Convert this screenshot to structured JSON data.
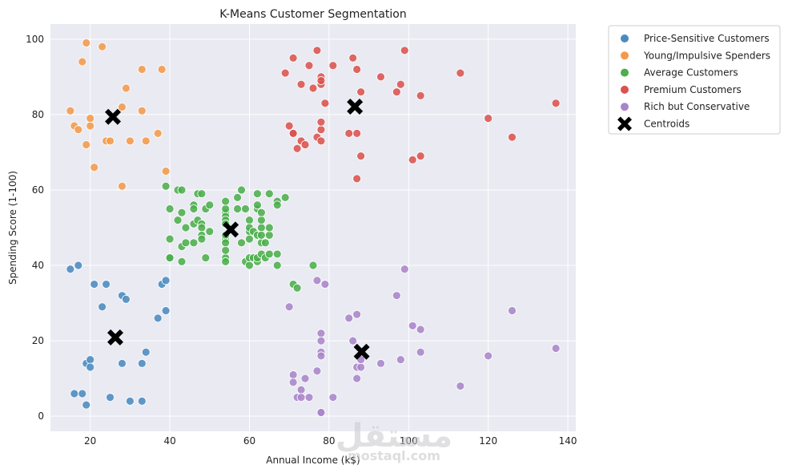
{
  "chart_data": {
    "type": "scatter",
    "title": "K-Means Customer Segmentation",
    "xlabel": "Annual Income (k$)",
    "ylabel": "Spending Score (1-100)",
    "xlim": [
      10,
      142
    ],
    "ylim": [
      -4,
      104
    ],
    "xticks": [
      20,
      40,
      60,
      80,
      100,
      120,
      140
    ],
    "yticks": [
      0,
      20,
      40,
      60,
      80,
      100
    ],
    "grid": true,
    "legend_position": "outside-right",
    "series": [
      {
        "name": "Price-Sensitive Customers",
        "color": "#4a8bbf",
        "points": [
          [
            15,
            39
          ],
          [
            16,
            6
          ],
          [
            17,
            40
          ],
          [
            18,
            6
          ],
          [
            19,
            3
          ],
          [
            19,
            14
          ],
          [
            20,
            15
          ],
          [
            20,
            13
          ],
          [
            21,
            35
          ],
          [
            23,
            29
          ],
          [
            24,
            35
          ],
          [
            25,
            5
          ],
          [
            28,
            14
          ],
          [
            28,
            32
          ],
          [
            29,
            31
          ],
          [
            30,
            4
          ],
          [
            33,
            4
          ],
          [
            33,
            14
          ],
          [
            34,
            17
          ],
          [
            37,
            26
          ],
          [
            38,
            35
          ],
          [
            39,
            36
          ],
          [
            39,
            28
          ]
        ]
      },
      {
        "name": "Young/Impulsive Spenders",
        "color": "#f39a4a",
        "points": [
          [
            15,
            81
          ],
          [
            16,
            77
          ],
          [
            17,
            76
          ],
          [
            18,
            94
          ],
          [
            19,
            72
          ],
          [
            19,
            99
          ],
          [
            20,
            77
          ],
          [
            20,
            79
          ],
          [
            21,
            66
          ],
          [
            23,
            98
          ],
          [
            24,
            73
          ],
          [
            25,
            73
          ],
          [
            28,
            82
          ],
          [
            28,
            61
          ],
          [
            29,
            87
          ],
          [
            30,
            73
          ],
          [
            33,
            92
          ],
          [
            33,
            81
          ],
          [
            34,
            73
          ],
          [
            37,
            75
          ],
          [
            38,
            92
          ],
          [
            39,
            65
          ]
        ]
      },
      {
        "name": "Average Customers",
        "color": "#4cae4c",
        "points": [
          [
            39,
            61
          ],
          [
            40,
            55
          ],
          [
            40,
            47
          ],
          [
            40,
            42
          ],
          [
            40,
            42
          ],
          [
            42,
            52
          ],
          [
            42,
            60
          ],
          [
            43,
            54
          ],
          [
            43,
            60
          ],
          [
            43,
            45
          ],
          [
            43,
            41
          ],
          [
            44,
            50
          ],
          [
            44,
            46
          ],
          [
            46,
            51
          ],
          [
            46,
            46
          ],
          [
            46,
            56
          ],
          [
            46,
            55
          ],
          [
            47,
            52
          ],
          [
            47,
            59
          ],
          [
            48,
            51
          ],
          [
            48,
            59
          ],
          [
            48,
            50
          ],
          [
            48,
            48
          ],
          [
            48,
            47
          ],
          [
            49,
            55
          ],
          [
            49,
            42
          ],
          [
            50,
            49
          ],
          [
            50,
            56
          ],
          [
            54,
            47
          ],
          [
            54,
            54
          ],
          [
            54,
            53
          ],
          [
            54,
            48
          ],
          [
            54,
            52
          ],
          [
            54,
            42
          ],
          [
            54,
            51
          ],
          [
            54,
            55
          ],
          [
            54,
            41
          ],
          [
            54,
            44
          ],
          [
            54,
            57
          ],
          [
            54,
            46
          ],
          [
            57,
            58
          ],
          [
            57,
            55
          ],
          [
            58,
            60
          ],
          [
            58,
            46
          ],
          [
            59,
            55
          ],
          [
            59,
            41
          ],
          [
            60,
            49
          ],
          [
            60,
            40
          ],
          [
            60,
            42
          ],
          [
            60,
            52
          ],
          [
            60,
            47
          ],
          [
            60,
            50
          ],
          [
            61,
            42
          ],
          [
            61,
            49
          ],
          [
            62,
            41
          ],
          [
            62,
            48
          ],
          [
            62,
            59
          ],
          [
            62,
            55
          ],
          [
            62,
            56
          ],
          [
            62,
            42
          ],
          [
            63,
            50
          ],
          [
            63,
            46
          ],
          [
            63,
            43
          ],
          [
            63,
            48
          ],
          [
            63,
            52
          ],
          [
            63,
            54
          ],
          [
            64,
            42
          ],
          [
            64,
            46
          ],
          [
            65,
            48
          ],
          [
            65,
            50
          ],
          [
            65,
            43
          ],
          [
            65,
            59
          ],
          [
            67,
            43
          ],
          [
            67,
            57
          ],
          [
            67,
            56
          ],
          [
            67,
            40
          ],
          [
            69,
            58
          ],
          [
            71,
            35
          ],
          [
            72,
            34
          ],
          [
            76,
            40
          ]
        ]
      },
      {
        "name": "Premium Customers",
        "color": "#d9534f",
        "points": [
          [
            69,
            91
          ],
          [
            70,
            77
          ],
          [
            71,
            95
          ],
          [
            71,
            75
          ],
          [
            71,
            75
          ],
          [
            72,
            71
          ],
          [
            73,
            88
          ],
          [
            73,
            73
          ],
          [
            74,
            72
          ],
          [
            75,
            93
          ],
          [
            76,
            87
          ],
          [
            77,
            97
          ],
          [
            77,
            74
          ],
          [
            78,
            90
          ],
          [
            78,
            88
          ],
          [
            78,
            76
          ],
          [
            78,
            89
          ],
          [
            78,
            78
          ],
          [
            78,
            73
          ],
          [
            79,
            83
          ],
          [
            81,
            93
          ],
          [
            85,
            75
          ],
          [
            86,
            95
          ],
          [
            87,
            63
          ],
          [
            87,
            75
          ],
          [
            87,
            92
          ],
          [
            88,
            86
          ],
          [
            88,
            69
          ],
          [
            93,
            90
          ],
          [
            97,
            86
          ],
          [
            98,
            88
          ],
          [
            99,
            97
          ],
          [
            101,
            68
          ],
          [
            103,
            85
          ],
          [
            103,
            69
          ],
          [
            113,
            91
          ],
          [
            120,
            79
          ],
          [
            126,
            74
          ],
          [
            137,
            83
          ]
        ]
      },
      {
        "name": "Rich but Conservative",
        "color": "#a885c9",
        "points": [
          [
            70,
            29
          ],
          [
            71,
            11
          ],
          [
            71,
            9
          ],
          [
            72,
            5
          ],
          [
            73,
            7
          ],
          [
            73,
            5
          ],
          [
            74,
            10
          ],
          [
            75,
            5
          ],
          [
            77,
            12
          ],
          [
            77,
            36
          ],
          [
            78,
            22
          ],
          [
            78,
            17
          ],
          [
            78,
            20
          ],
          [
            78,
            16
          ],
          [
            78,
            1
          ],
          [
            78,
            1
          ],
          [
            79,
            35
          ],
          [
            81,
            5
          ],
          [
            85,
            26
          ],
          [
            86,
            20
          ],
          [
            87,
            27
          ],
          [
            87,
            13
          ],
          [
            87,
            10
          ],
          [
            88,
            13
          ],
          [
            88,
            15
          ],
          [
            93,
            14
          ],
          [
            97,
            32
          ],
          [
            98,
            15
          ],
          [
            99,
            39
          ],
          [
            101,
            24
          ],
          [
            103,
            17
          ],
          [
            103,
            23
          ],
          [
            113,
            8
          ],
          [
            120,
            16
          ],
          [
            126,
            28
          ],
          [
            137,
            18
          ]
        ]
      },
      {
        "name": "Centroids",
        "color": "#000000",
        "marker": "x",
        "points": [
          [
            25.7,
            79.4
          ],
          [
            26.3,
            20.9
          ],
          [
            55.3,
            49.5
          ],
          [
            86.5,
            82.1
          ],
          [
            88.2,
            17.1
          ]
        ]
      }
    ]
  },
  "watermark": {
    "arabic": "مستقل",
    "latin": "mostaql.com"
  }
}
